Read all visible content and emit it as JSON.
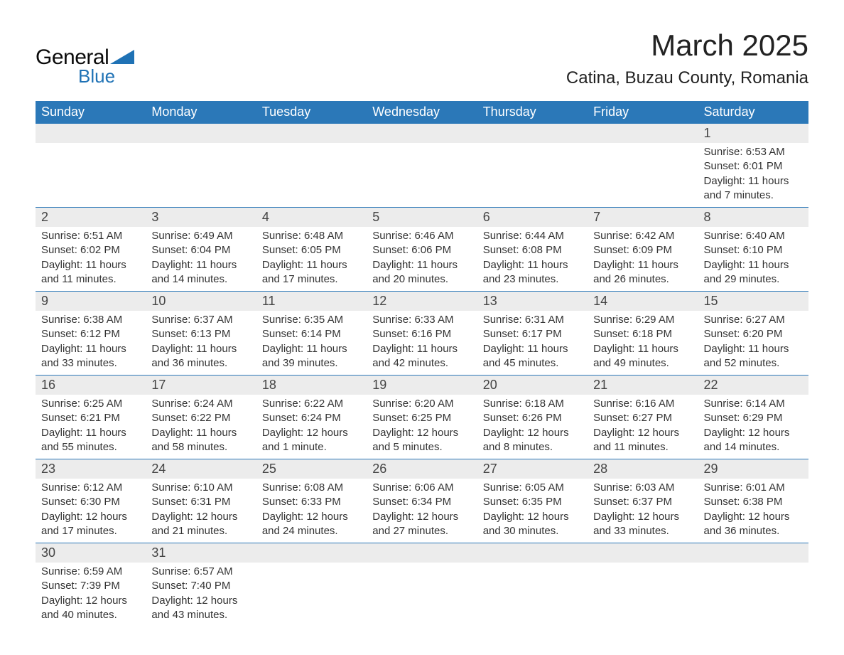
{
  "logo": {
    "word1": "General",
    "word2": "Blue",
    "text_color": "#0b0b0b",
    "accent_color": "#1f72b5"
  },
  "title": "March 2025",
  "location": "Catina, Buzau County, Romania",
  "colors": {
    "header_bg": "#2b78b8",
    "header_text": "#ffffff",
    "daynum_bg": "#ececec",
    "row_border": "#2b78b8",
    "body_text": "#333333",
    "background": "#ffffff"
  },
  "fonts": {
    "title_pt": 42,
    "location_pt": 24,
    "header_pt": 18,
    "daynum_pt": 18,
    "body_pt": 15
  },
  "weekdays": [
    "Sunday",
    "Monday",
    "Tuesday",
    "Wednesday",
    "Thursday",
    "Friday",
    "Saturday"
  ],
  "weeks": [
    [
      {
        "blank": true
      },
      {
        "blank": true
      },
      {
        "blank": true
      },
      {
        "blank": true
      },
      {
        "blank": true
      },
      {
        "blank": true
      },
      {
        "day": "1",
        "sunrise": "Sunrise: 6:53 AM",
        "sunset": "Sunset: 6:01 PM",
        "daylight": "Daylight: 11 hours and 7 minutes."
      }
    ],
    [
      {
        "day": "2",
        "sunrise": "Sunrise: 6:51 AM",
        "sunset": "Sunset: 6:02 PM",
        "daylight": "Daylight: 11 hours and 11 minutes."
      },
      {
        "day": "3",
        "sunrise": "Sunrise: 6:49 AM",
        "sunset": "Sunset: 6:04 PM",
        "daylight": "Daylight: 11 hours and 14 minutes."
      },
      {
        "day": "4",
        "sunrise": "Sunrise: 6:48 AM",
        "sunset": "Sunset: 6:05 PM",
        "daylight": "Daylight: 11 hours and 17 minutes."
      },
      {
        "day": "5",
        "sunrise": "Sunrise: 6:46 AM",
        "sunset": "Sunset: 6:06 PM",
        "daylight": "Daylight: 11 hours and 20 minutes."
      },
      {
        "day": "6",
        "sunrise": "Sunrise: 6:44 AM",
        "sunset": "Sunset: 6:08 PM",
        "daylight": "Daylight: 11 hours and 23 minutes."
      },
      {
        "day": "7",
        "sunrise": "Sunrise: 6:42 AM",
        "sunset": "Sunset: 6:09 PM",
        "daylight": "Daylight: 11 hours and 26 minutes."
      },
      {
        "day": "8",
        "sunrise": "Sunrise: 6:40 AM",
        "sunset": "Sunset: 6:10 PM",
        "daylight": "Daylight: 11 hours and 29 minutes."
      }
    ],
    [
      {
        "day": "9",
        "sunrise": "Sunrise: 6:38 AM",
        "sunset": "Sunset: 6:12 PM",
        "daylight": "Daylight: 11 hours and 33 minutes."
      },
      {
        "day": "10",
        "sunrise": "Sunrise: 6:37 AM",
        "sunset": "Sunset: 6:13 PM",
        "daylight": "Daylight: 11 hours and 36 minutes."
      },
      {
        "day": "11",
        "sunrise": "Sunrise: 6:35 AM",
        "sunset": "Sunset: 6:14 PM",
        "daylight": "Daylight: 11 hours and 39 minutes."
      },
      {
        "day": "12",
        "sunrise": "Sunrise: 6:33 AM",
        "sunset": "Sunset: 6:16 PM",
        "daylight": "Daylight: 11 hours and 42 minutes."
      },
      {
        "day": "13",
        "sunrise": "Sunrise: 6:31 AM",
        "sunset": "Sunset: 6:17 PM",
        "daylight": "Daylight: 11 hours and 45 minutes."
      },
      {
        "day": "14",
        "sunrise": "Sunrise: 6:29 AM",
        "sunset": "Sunset: 6:18 PM",
        "daylight": "Daylight: 11 hours and 49 minutes."
      },
      {
        "day": "15",
        "sunrise": "Sunrise: 6:27 AM",
        "sunset": "Sunset: 6:20 PM",
        "daylight": "Daylight: 11 hours and 52 minutes."
      }
    ],
    [
      {
        "day": "16",
        "sunrise": "Sunrise: 6:25 AM",
        "sunset": "Sunset: 6:21 PM",
        "daylight": "Daylight: 11 hours and 55 minutes."
      },
      {
        "day": "17",
        "sunrise": "Sunrise: 6:24 AM",
        "sunset": "Sunset: 6:22 PM",
        "daylight": "Daylight: 11 hours and 58 minutes."
      },
      {
        "day": "18",
        "sunrise": "Sunrise: 6:22 AM",
        "sunset": "Sunset: 6:24 PM",
        "daylight": "Daylight: 12 hours and 1 minute."
      },
      {
        "day": "19",
        "sunrise": "Sunrise: 6:20 AM",
        "sunset": "Sunset: 6:25 PM",
        "daylight": "Daylight: 12 hours and 5 minutes."
      },
      {
        "day": "20",
        "sunrise": "Sunrise: 6:18 AM",
        "sunset": "Sunset: 6:26 PM",
        "daylight": "Daylight: 12 hours and 8 minutes."
      },
      {
        "day": "21",
        "sunrise": "Sunrise: 6:16 AM",
        "sunset": "Sunset: 6:27 PM",
        "daylight": "Daylight: 12 hours and 11 minutes."
      },
      {
        "day": "22",
        "sunrise": "Sunrise: 6:14 AM",
        "sunset": "Sunset: 6:29 PM",
        "daylight": "Daylight: 12 hours and 14 minutes."
      }
    ],
    [
      {
        "day": "23",
        "sunrise": "Sunrise: 6:12 AM",
        "sunset": "Sunset: 6:30 PM",
        "daylight": "Daylight: 12 hours and 17 minutes."
      },
      {
        "day": "24",
        "sunrise": "Sunrise: 6:10 AM",
        "sunset": "Sunset: 6:31 PM",
        "daylight": "Daylight: 12 hours and 21 minutes."
      },
      {
        "day": "25",
        "sunrise": "Sunrise: 6:08 AM",
        "sunset": "Sunset: 6:33 PM",
        "daylight": "Daylight: 12 hours and 24 minutes."
      },
      {
        "day": "26",
        "sunrise": "Sunrise: 6:06 AM",
        "sunset": "Sunset: 6:34 PM",
        "daylight": "Daylight: 12 hours and 27 minutes."
      },
      {
        "day": "27",
        "sunrise": "Sunrise: 6:05 AM",
        "sunset": "Sunset: 6:35 PM",
        "daylight": "Daylight: 12 hours and 30 minutes."
      },
      {
        "day": "28",
        "sunrise": "Sunrise: 6:03 AM",
        "sunset": "Sunset: 6:37 PM",
        "daylight": "Daylight: 12 hours and 33 minutes."
      },
      {
        "day": "29",
        "sunrise": "Sunrise: 6:01 AM",
        "sunset": "Sunset: 6:38 PM",
        "daylight": "Daylight: 12 hours and 36 minutes."
      }
    ],
    [
      {
        "day": "30",
        "sunrise": "Sunrise: 6:59 AM",
        "sunset": "Sunset: 7:39 PM",
        "daylight": "Daylight: 12 hours and 40 minutes."
      },
      {
        "day": "31",
        "sunrise": "Sunrise: 6:57 AM",
        "sunset": "Sunset: 7:40 PM",
        "daylight": "Daylight: 12 hours and 43 minutes."
      },
      {
        "blank": true
      },
      {
        "blank": true
      },
      {
        "blank": true
      },
      {
        "blank": true
      },
      {
        "blank": true
      }
    ]
  ]
}
